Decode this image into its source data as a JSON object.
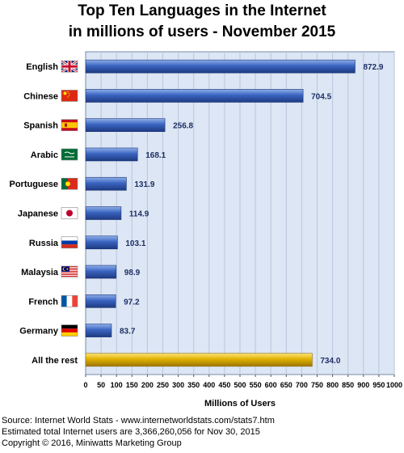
{
  "chart_data": {
    "type": "bar",
    "orientation": "horizontal",
    "title": "Top Ten Languages in the Internet",
    "subtitle": "in millions of users - November 2015",
    "xlabel": "Millions of Users",
    "ylabel": "",
    "xlim": [
      0,
      1000
    ],
    "xticks": [
      0,
      50,
      100,
      150,
      200,
      250,
      300,
      350,
      400,
      450,
      500,
      550,
      600,
      650,
      700,
      750,
      800,
      850,
      900,
      950,
      1000
    ],
    "grid": true,
    "categories": [
      "English",
      "Chinese",
      "Spanish",
      "Arabic",
      "Portuguese",
      "Japanese",
      "Russia",
      "Malaysia",
      "French",
      "Germany",
      "All the rest"
    ],
    "values": [
      872.9,
      704.5,
      256.8,
      168.1,
      131.9,
      114.9,
      103.1,
      98.9,
      97.2,
      83.7,
      734.0
    ],
    "value_labels": [
      "872.9",
      "704.5",
      "256.8",
      "168.1",
      "131.9",
      "114.9",
      "103.1",
      "98.9",
      "97.2",
      "83.7",
      "734.0"
    ],
    "flags": [
      "uk-flag-icon",
      "china-flag-icon",
      "spain-flag-icon",
      "saudi-arabia-flag-icon",
      "portugal-flag-icon",
      "japan-flag-icon",
      "russia-flag-icon",
      "malaysia-flag-icon",
      "france-flag-icon",
      "germany-flag-icon",
      ""
    ],
    "colors": {
      "bar_blue": "#3a64c0",
      "bar_gold": "#e0b000",
      "plot_bg": "#dce6f4",
      "grid": "#b8c6dd",
      "value_text": "#1f2f66"
    }
  },
  "footer": {
    "line1": "Source: Internet World Stats - www.internetworldstats.com/stats7.htm",
    "line2": "Estimated total Internet users are 3,366,260,056 for Nov 30, 2015",
    "line3": "Copyright © 2016, Miniwatts Marketing Group"
  }
}
